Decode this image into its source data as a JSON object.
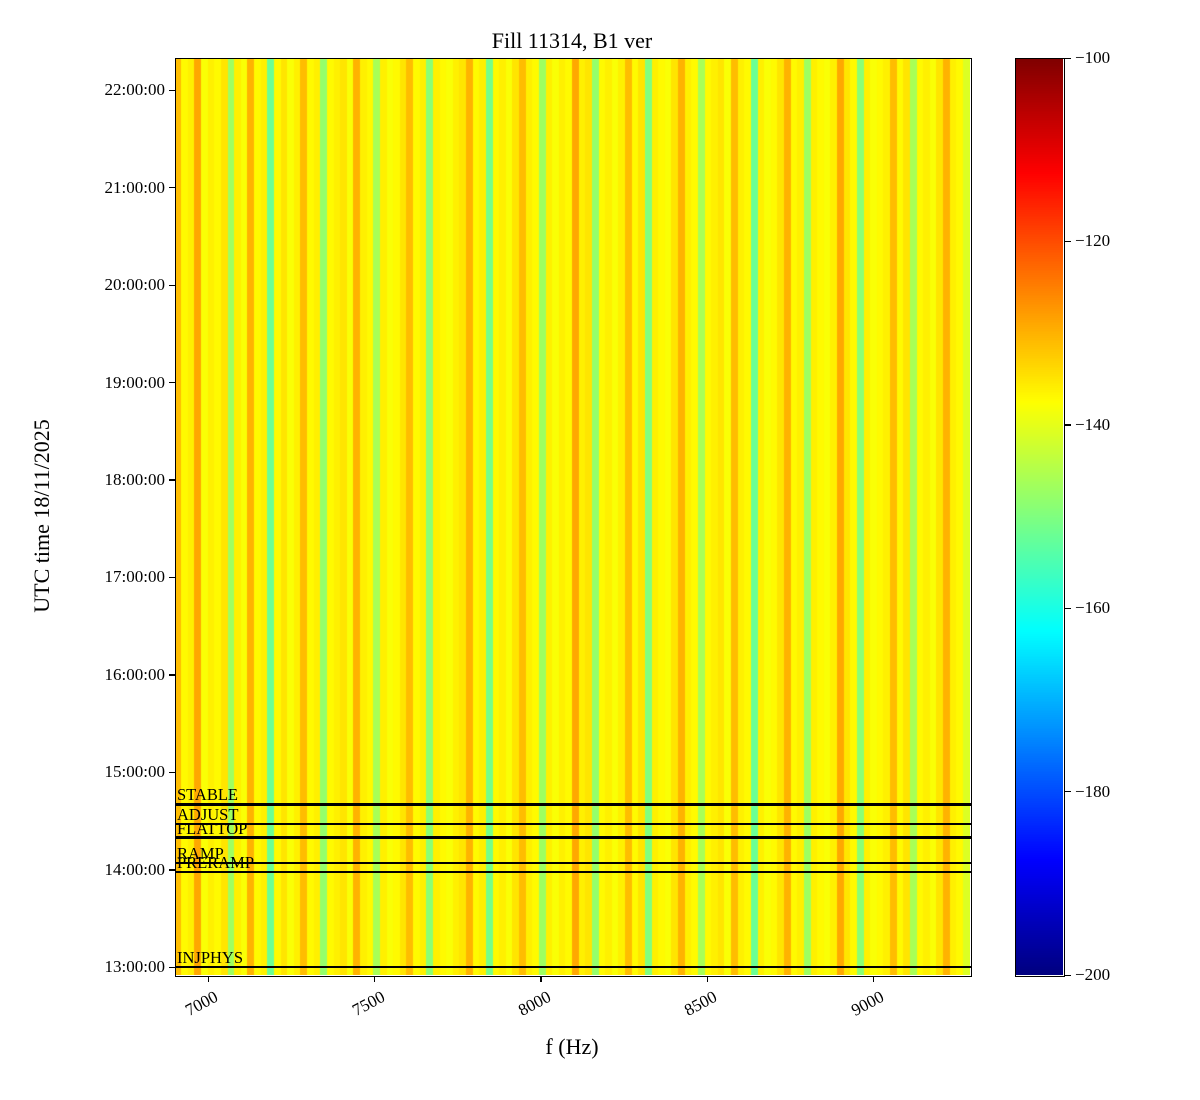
{
  "figure": {
    "title": "Fill 11314, B1 ver",
    "xlabel": "f (Hz)",
    "ylabel": "UTC time 18/11/2025"
  },
  "chart_data": {
    "type": "heatmap",
    "title": "Fill 11314, B1 ver",
    "xlabel": "f (Hz)",
    "ylabel": "UTC time 18/11/2025",
    "colormap": "jet",
    "grid": false,
    "x_range_hz": [
      6900,
      9290
    ],
    "time_axis_range_hours": [
      12.92,
      22.33
    ],
    "color_range_db": [
      -200,
      -100
    ],
    "x_ticks": [
      {
        "value": 7000,
        "label": "7000"
      },
      {
        "value": 7500,
        "label": "7500"
      },
      {
        "value": 8000,
        "label": "8000"
      },
      {
        "value": 8500,
        "label": "8500"
      },
      {
        "value": 9000,
        "label": "9000"
      }
    ],
    "y_ticks": [
      {
        "hours": 13,
        "label": "13:00:00"
      },
      {
        "hours": 14,
        "label": "14:00:00"
      },
      {
        "hours": 15,
        "label": "15:00:00"
      },
      {
        "hours": 16,
        "label": "16:00:00"
      },
      {
        "hours": 17,
        "label": "17:00:00"
      },
      {
        "hours": 18,
        "label": "18:00:00"
      },
      {
        "hours": 19,
        "label": "19:00:00"
      },
      {
        "hours": 20,
        "label": "20:00:00"
      },
      {
        "hours": 21,
        "label": "21:00:00"
      },
      {
        "hours": 22,
        "label": "22:00:00"
      }
    ],
    "colorbar_ticks": [
      {
        "value": -100,
        "label": "−100"
      },
      {
        "value": -120,
        "label": "−120"
      },
      {
        "value": -140,
        "label": "−140"
      },
      {
        "value": -160,
        "label": "−160"
      },
      {
        "value": -180,
        "label": "−180"
      },
      {
        "value": -200,
        "label": "−200"
      }
    ],
    "beam_modes": [
      {
        "label": "STABLE",
        "hours": 14.67
      },
      {
        "label": "ADJUST",
        "hours": 14.47
      },
      {
        "label": "FLATTOP",
        "hours": 14.33
      },
      {
        "label": "RAMP",
        "hours": 14.07
      },
      {
        "label": "PRERAMP",
        "hours": 13.98
      },
      {
        "label": "INJPHYS",
        "hours": 13.0
      }
    ],
    "frequency_bins": 120,
    "values_db": [
      -131,
      -137,
      -136,
      -129,
      -138,
      -136,
      -137,
      -135,
      -147,
      -136,
      -138,
      -130,
      -137,
      -136,
      -152,
      -137,
      -135,
      -138,
      -136,
      -131,
      -137,
      -136,
      -148,
      -137,
      -136,
      -135,
      -138,
      -130,
      -136,
      -137,
      -146,
      -136,
      -138,
      -137,
      -135,
      -131,
      -137,
      -136,
      -149,
      -136,
      -137,
      -138,
      -136,
      -135,
      -130,
      -137,
      -136,
      -151,
      -137,
      -136,
      -138,
      -135,
      -131,
      -136,
      -137,
      -147,
      -136,
      -138,
      -136,
      -137,
      -129,
      -136,
      -135,
      -148,
      -137,
      -136,
      -138,
      -136,
      -131,
      -137,
      -135,
      -150,
      -136,
      -137,
      -138,
      -135,
      -130,
      -136,
      -137,
      -146,
      -137,
      -136,
      -135,
      -138,
      -131,
      -136,
      -137,
      -152,
      -136,
      -138,
      -137,
      -135,
      -130,
      -137,
      -136,
      -147,
      -136,
      -137,
      -138,
      -136,
      -129,
      -135,
      -137,
      -149,
      -136,
      -138,
      -137,
      -136,
      -131,
      -137,
      -135,
      -146,
      -137,
      -136,
      -138,
      -135,
      -130,
      -136,
      -137,
      -141
    ]
  }
}
